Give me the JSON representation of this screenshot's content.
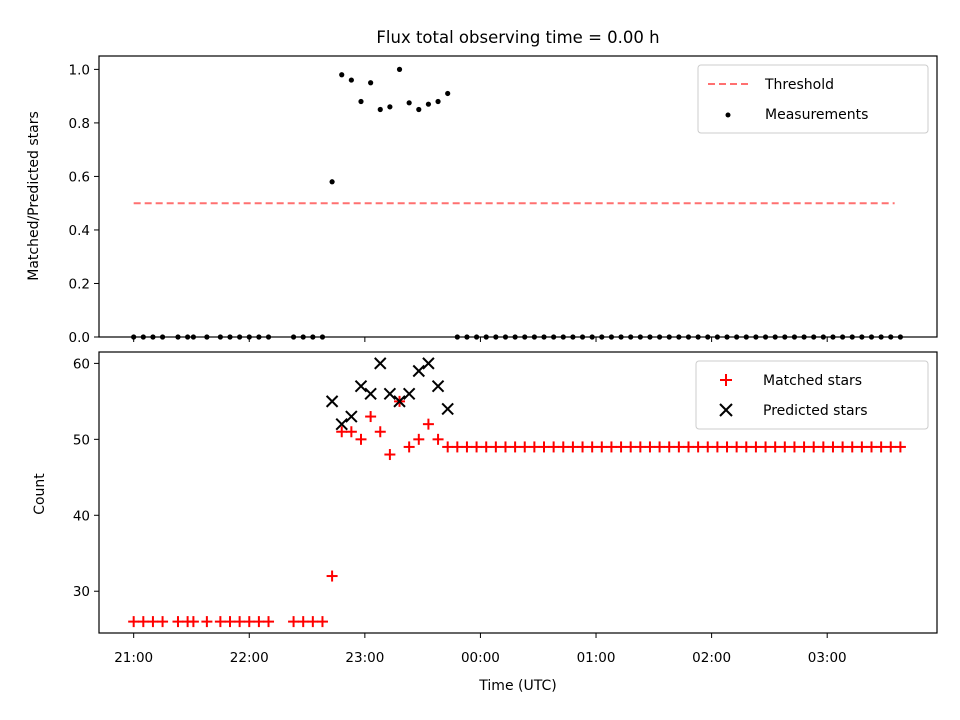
{
  "chart_data": [
    {
      "type": "scatter",
      "title": "Flux total observing time = 0.00 h",
      "xlabel": "",
      "ylabel": "Matched/Predicted stars",
      "xlim": [
        "20:42",
        "03:57"
      ],
      "ylim": [
        0,
        1.05
      ],
      "yticks": [
        "0.0",
        "0.2",
        "0.4",
        "0.6",
        "0.8",
        "1.0"
      ],
      "grid": false,
      "legend_position": "top-right",
      "series": [
        {
          "name": "Threshold",
          "kind": "dashed-line",
          "color": "#ff7070",
          "x": [
            "21:00",
            "23:00",
            "01:00",
            "03:35"
          ],
          "y": [
            0.5,
            0.5,
            0.5,
            0.5
          ]
        },
        {
          "name": "Measurements",
          "kind": "dots",
          "color": "#000000",
          "x": [
            "21:00",
            "21:05",
            "21:10",
            "21:15",
            "21:23",
            "21:28",
            "21:31",
            "21:38",
            "21:45",
            "21:50",
            "21:55",
            "22:00",
            "22:05",
            "22:10",
            "22:23",
            "22:28",
            "22:33",
            "22:38",
            "22:43",
            "22:48",
            "22:53",
            "22:58",
            "23:03",
            "23:08",
            "23:13",
            "23:18",
            "23:23",
            "23:28",
            "23:33",
            "23:38",
            "23:43",
            "23:48",
            "23:53",
            "23:58",
            "00:03",
            "00:08",
            "00:13",
            "00:18",
            "00:23",
            "00:28",
            "00:33",
            "00:38",
            "00:43",
            "00:48",
            "00:53",
            "00:58",
            "01:03",
            "01:08",
            "01:13",
            "01:18",
            "01:23",
            "01:28",
            "01:33",
            "01:38",
            "01:43",
            "01:48",
            "01:53",
            "01:58",
            "02:03",
            "02:08",
            "02:13",
            "02:18",
            "02:23",
            "02:28",
            "02:33",
            "02:38",
            "02:43",
            "02:48",
            "02:53",
            "02:58",
            "03:03",
            "03:08",
            "03:13",
            "03:18",
            "03:23",
            "03:28",
            "03:33",
            "03:38"
          ],
          "y": [
            0,
            0,
            0,
            0,
            0,
            0,
            0,
            0,
            0,
            0,
            0,
            0,
            0,
            0,
            0,
            0,
            0,
            0,
            0.58,
            0.98,
            0.96,
            0.88,
            0.95,
            0.85,
            0.86,
            1.0,
            0.875,
            0.85,
            0.87,
            0.88,
            0.91,
            0,
            0,
            0,
            0,
            0,
            0,
            0,
            0,
            0,
            0,
            0,
            0,
            0,
            0,
            0,
            0,
            0,
            0,
            0,
            0,
            0,
            0,
            0,
            0,
            0,
            0,
            0,
            0,
            0,
            0,
            0,
            0,
            0,
            0,
            0,
            0,
            0,
            0,
            0,
            0,
            0,
            0,
            0,
            0,
            0,
            0,
            0
          ]
        }
      ]
    },
    {
      "type": "scatter",
      "title": "",
      "xlabel": "Time (UTC)",
      "ylabel": "Count",
      "xlim": [
        "20:42",
        "03:57"
      ],
      "ylim": [
        24.5,
        61.5
      ],
      "xticks": [
        "21:00",
        "22:00",
        "23:00",
        "00:00",
        "01:00",
        "02:00",
        "03:00"
      ],
      "yticks": [
        "30",
        "40",
        "50",
        "60"
      ],
      "grid": false,
      "legend_position": "top-right",
      "series": [
        {
          "name": "Matched stars",
          "marker": "plus",
          "color": "#ff0000",
          "x": [
            "21:00",
            "21:05",
            "21:10",
            "21:15",
            "21:23",
            "21:28",
            "21:31",
            "21:38",
            "21:45",
            "21:50",
            "21:55",
            "22:00",
            "22:05",
            "22:10",
            "22:23",
            "22:28",
            "22:33",
            "22:38",
            "22:43",
            "22:48",
            "22:53",
            "22:58",
            "23:03",
            "23:08",
            "23:13",
            "23:18",
            "23:23",
            "23:28",
            "23:33",
            "23:38",
            "23:43",
            "23:48",
            "23:53",
            "23:58",
            "00:03",
            "00:08",
            "00:13",
            "00:18",
            "00:23",
            "00:28",
            "00:33",
            "00:38",
            "00:43",
            "00:48",
            "00:53",
            "00:58",
            "01:03",
            "01:08",
            "01:13",
            "01:18",
            "01:23",
            "01:28",
            "01:33",
            "01:38",
            "01:43",
            "01:48",
            "01:53",
            "01:58",
            "02:03",
            "02:08",
            "02:13",
            "02:18",
            "02:23",
            "02:28",
            "02:33",
            "02:38",
            "02:43",
            "02:48",
            "02:53",
            "02:58",
            "03:03",
            "03:08",
            "03:13",
            "03:18",
            "03:23",
            "03:28",
            "03:33",
            "03:38"
          ],
          "y": [
            26,
            26,
            26,
            26,
            26,
            26,
            26,
            26,
            26,
            26,
            26,
            26,
            26,
            26,
            26,
            26,
            26,
            26,
            32,
            51,
            51,
            50,
            53,
            51,
            48,
            55,
            49,
            50,
            52,
            50,
            49,
            49,
            49,
            49,
            49,
            49,
            49,
            49,
            49,
            49,
            49,
            49,
            49,
            49,
            49,
            49,
            49,
            49,
            49,
            49,
            49,
            49,
            49,
            49,
            49,
            49,
            49,
            49,
            49,
            49,
            49,
            49,
            49,
            49,
            49,
            49,
            49,
            49,
            49,
            49,
            49,
            49,
            49,
            49,
            49,
            49,
            49,
            49
          ]
        },
        {
          "name": "Predicted stars",
          "marker": "x",
          "color": "#000000",
          "x": [
            "22:43",
            "22:48",
            "22:53",
            "22:58",
            "23:03",
            "23:08",
            "23:13",
            "23:18",
            "23:23",
            "23:28",
            "23:33",
            "23:38",
            "23:43"
          ],
          "y": [
            55,
            52,
            53,
            57,
            56,
            60,
            56,
            55,
            56,
            59,
            60,
            57,
            54
          ]
        }
      ]
    }
  ]
}
